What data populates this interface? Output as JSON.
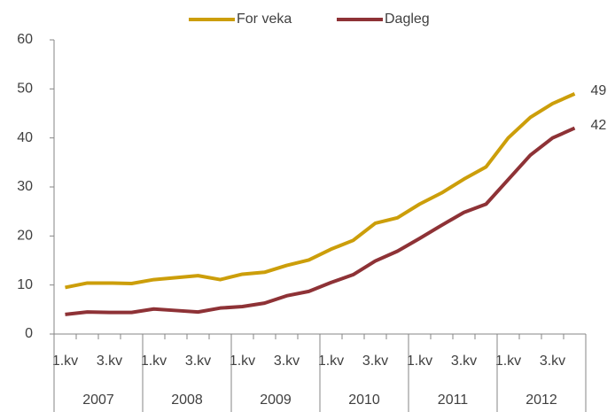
{
  "chart_data": {
    "type": "line",
    "categories": [
      "1.kv",
      null,
      "3.kv",
      null,
      "1.kv",
      null,
      "3.kv",
      null,
      "1.kv",
      null,
      "3.kv",
      null,
      "1.kv",
      null,
      "3.kv",
      null,
      "1.kv",
      null,
      "3.kv",
      null,
      "1.kv",
      null,
      "3.kv",
      null
    ],
    "years": [
      "2007",
      "2008",
      "2009",
      "2010",
      "2011",
      "2012"
    ],
    "series": [
      {
        "name": "For veka",
        "color": "#cc9e0a",
        "values": [
          9.5,
          10.4,
          10.4,
          10.3,
          11.1,
          11.5,
          11.9,
          11.1,
          12.2,
          12.6,
          14.0,
          15.1,
          17.3,
          19.1,
          22.6,
          23.7,
          26.5,
          28.8,
          31.6,
          34.1,
          40.0,
          44.2,
          47.0,
          49
        ]
      },
      {
        "name": "Dagleg",
        "color": "#8e3236",
        "values": [
          4.0,
          4.5,
          4.4,
          4.4,
          5.1,
          4.8,
          4.5,
          5.3,
          5.6,
          6.3,
          7.8,
          8.7,
          10.5,
          12.1,
          14.9,
          16.9,
          19.5,
          22.2,
          24.8,
          26.5,
          31.5,
          36.5,
          40.0,
          42
        ]
      }
    ],
    "ylim": [
      0,
      60
    ],
    "yticks": [
      0,
      10,
      20,
      30,
      40,
      50,
      60
    ],
    "grid": false,
    "legend": "top"
  }
}
